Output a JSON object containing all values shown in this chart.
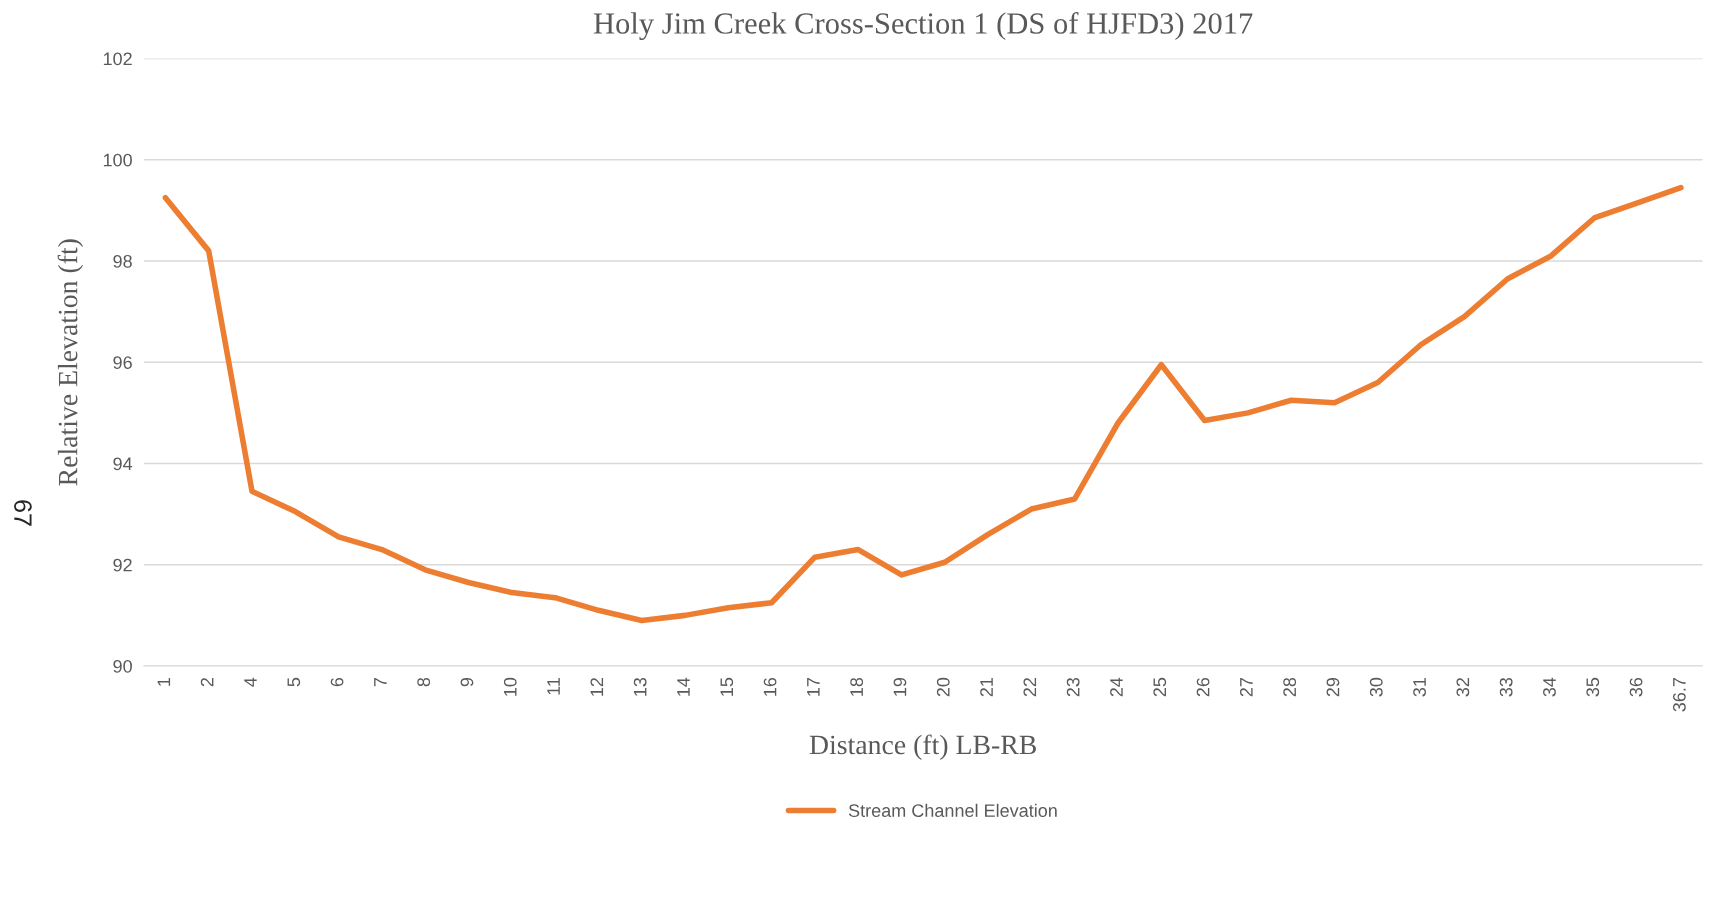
{
  "chart_data": {
    "type": "line",
    "title": "Holy Jim Creek Cross-Section 1 (DS of HJFD3) 2017",
    "xlabel": "Distance (ft) LB-RB",
    "ylabel": "Relative Elevation (ft)",
    "categories": [
      "1",
      "2",
      "4",
      "5",
      "6",
      "7",
      "8",
      "9",
      "10",
      "11",
      "12",
      "13",
      "14",
      "15",
      "16",
      "17",
      "18",
      "19",
      "20",
      "21",
      "22",
      "23",
      "24",
      "25",
      "26",
      "27",
      "28",
      "29",
      "30",
      "31",
      "32",
      "33",
      "34",
      "35",
      "36",
      "36.7"
    ],
    "series": [
      {
        "name": "Stream Channel Elevation",
        "color": "#ed7d31",
        "values": [
          99.25,
          98.2,
          93.45,
          93.05,
          92.55,
          92.3,
          91.9,
          91.65,
          91.45,
          91.35,
          91.1,
          90.9,
          91.0,
          91.15,
          91.25,
          92.15,
          92.3,
          91.8,
          92.05,
          92.6,
          93.1,
          93.3,
          94.8,
          95.95,
          94.85,
          95.0,
          95.25,
          95.2,
          95.6,
          96.35,
          96.9,
          97.65,
          98.1,
          98.85,
          99.15,
          99.45
        ]
      }
    ],
    "ylim": [
      90,
      102
    ],
    "yticks": [
      90,
      92,
      94,
      96,
      98,
      100,
      102
    ],
    "grid": "y",
    "legend": "bottom",
    "marker": "none",
    "line_style": "solid",
    "annotations": [
      "67"
    ]
  }
}
